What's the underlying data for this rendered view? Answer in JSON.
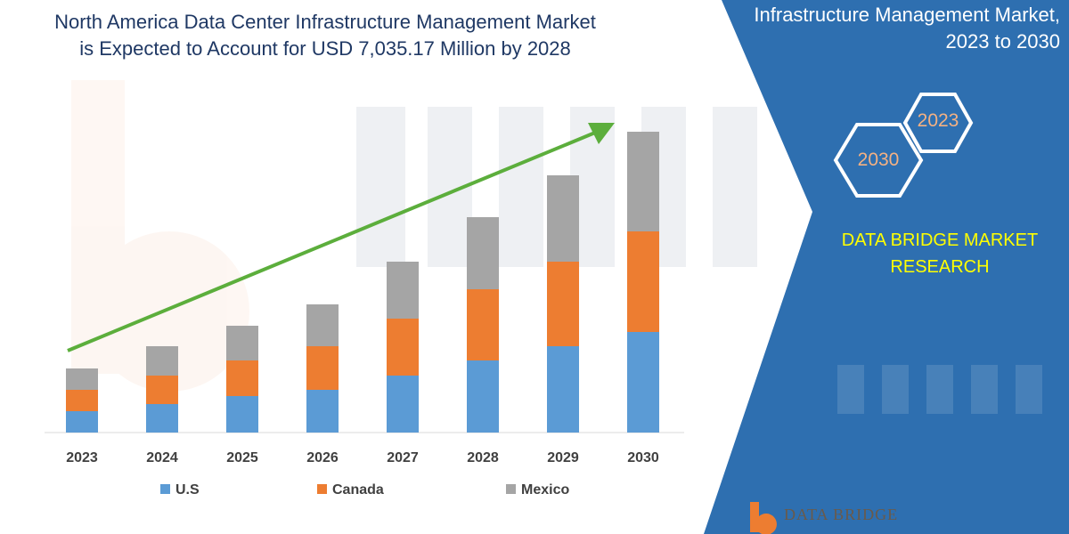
{
  "header": {
    "title_line1": "North America Data Center Infrastructure Management Market",
    "title_line2": "is Expected to Account for USD 7,035.17 Million by 2028"
  },
  "side_panel": {
    "title_line1": "Infrastructure Management Market,",
    "title_line2": "2023 to 2030",
    "hex_top_label": "2023",
    "hex_bottom_label": "2030",
    "brand_line1": "DATA BRIDGE MARKET",
    "brand_line2": "RESEARCH",
    "logo_text": "DATA BRIDGE",
    "background_color": "#2e6fb0",
    "brand_color": "#ffff00"
  },
  "chart_data": {
    "type": "bar",
    "stacked": true,
    "categories": [
      "2023",
      "2024",
      "2025",
      "2026",
      "2027",
      "2028",
      "2029",
      "2030"
    ],
    "series": [
      {
        "name": "U.S",
        "color": "#5b9bd5",
        "values": [
          24,
          32,
          41,
          48,
          64,
          81,
          97,
          113
        ]
      },
      {
        "name": "Canada",
        "color": "#ed7d31",
        "values": [
          24,
          32,
          40,
          49,
          64,
          80,
          95,
          113
        ]
      },
      {
        "name": "Mexico",
        "color": "#a5a5a5",
        "values": [
          24,
          33,
          39,
          47,
          64,
          81,
          97,
          112
        ]
      }
    ],
    "legend_position": "bottom",
    "grid": false,
    "trend_arrow_color": "#5cae3c"
  }
}
